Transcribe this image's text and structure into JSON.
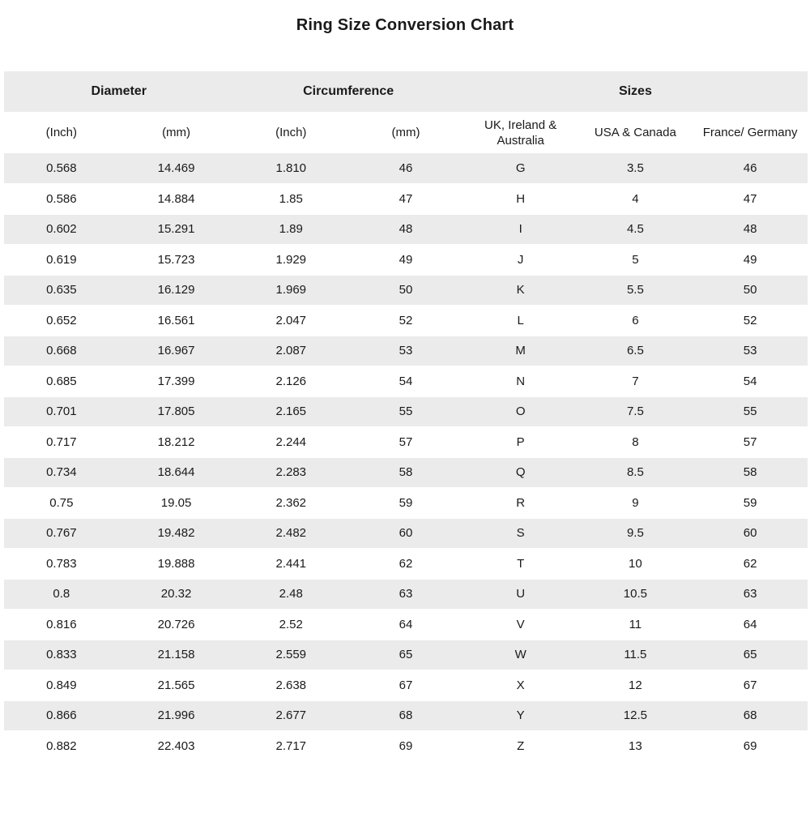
{
  "title": "Ring Size Conversion Chart",
  "colors": {
    "stripe": "#ebebeb",
    "header_bg": "#ebebeb",
    "text": "#1a1a1a",
    "background": "#ffffff"
  },
  "chart_data": {
    "type": "table",
    "title": "Ring Size Conversion Chart",
    "column_groups": [
      {
        "label": "Diameter",
        "colspan": 2
      },
      {
        "label": "Circumference",
        "colspan": 2
      },
      {
        "label": "Sizes",
        "colspan": 3
      }
    ],
    "columns": [
      "(Inch)",
      "(mm)",
      "(Inch)",
      "(mm)",
      "UK, Ireland & Australia",
      "USA & Canada",
      "France/ Germany"
    ],
    "rows": [
      [
        "0.568",
        "14.469",
        "1.810",
        "46",
        "G",
        "3.5",
        "46"
      ],
      [
        "0.586",
        "14.884",
        "1.85",
        "47",
        "H",
        "4",
        "47"
      ],
      [
        "0.602",
        "15.291",
        "1.89",
        "48",
        "I",
        "4.5",
        "48"
      ],
      [
        "0.619",
        "15.723",
        "1.929",
        "49",
        "J",
        "5",
        "49"
      ],
      [
        "0.635",
        "16.129",
        "1.969",
        "50",
        "K",
        "5.5",
        "50"
      ],
      [
        "0.652",
        "16.561",
        "2.047",
        "52",
        "L",
        "6",
        "52"
      ],
      [
        "0.668",
        "16.967",
        "2.087",
        "53",
        "M",
        "6.5",
        "53"
      ],
      [
        "0.685",
        "17.399",
        "2.126",
        "54",
        "N",
        "7",
        "54"
      ],
      [
        "0.701",
        "17.805",
        "2.165",
        "55",
        "O",
        "7.5",
        "55"
      ],
      [
        "0.717",
        "18.212",
        "2.244",
        "57",
        "P",
        "8",
        "57"
      ],
      [
        "0.734",
        "18.644",
        "2.283",
        "58",
        "Q",
        "8.5",
        "58"
      ],
      [
        "0.75",
        "19.05",
        "2.362",
        "59",
        "R",
        "9",
        "59"
      ],
      [
        "0.767",
        "19.482",
        "2.482",
        "60",
        "S",
        "9.5",
        "60"
      ],
      [
        "0.783",
        "19.888",
        "2.441",
        "62",
        "T",
        "10",
        "62"
      ],
      [
        "0.8",
        "20.32",
        "2.48",
        "63",
        "U",
        "10.5",
        "63"
      ],
      [
        "0.816",
        "20.726",
        "2.52",
        "64",
        "V",
        "11",
        "64"
      ],
      [
        "0.833",
        "21.158",
        "2.559",
        "65",
        "W",
        "11.5",
        "65"
      ],
      [
        "0.849",
        "21.565",
        "2.638",
        "67",
        "X",
        "12",
        "67"
      ],
      [
        "0.866",
        "21.996",
        "2.677",
        "68",
        "Y",
        "12.5",
        "68"
      ],
      [
        "0.882",
        "22.403",
        "2.717",
        "69",
        "Z",
        "13",
        "69"
      ]
    ],
    "layout": {
      "striped": true,
      "stripe_pattern": "odd-rows-gray",
      "alignment": "center",
      "grid": false
    }
  }
}
